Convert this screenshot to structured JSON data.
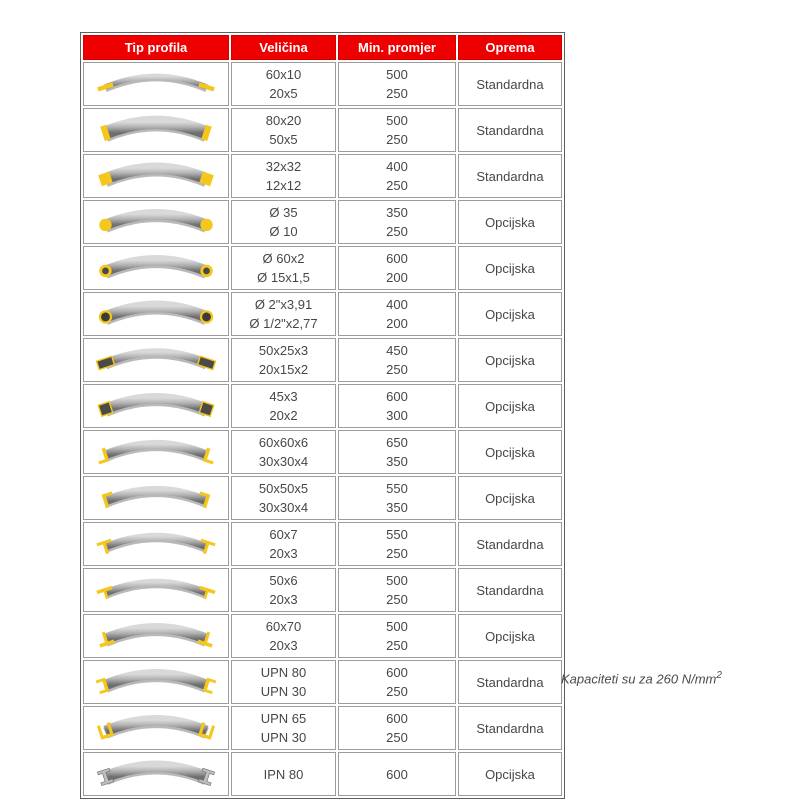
{
  "colors": {
    "header_bg": "#ee0000",
    "header_text": "#ffffff",
    "accent_yellow": "#f5c61b",
    "cell_text": "#474747",
    "steel_light": "#d9d9d9",
    "steel_mid": "#b2b2b2",
    "steel_dark": "#6e6e6e",
    "border_outer": "#5f5f5f",
    "border_cell": "#9c9c9c"
  },
  "table": {
    "columns": [
      "Tip profila",
      "Veličina",
      "Min. promjer",
      "Oprema"
    ],
    "rows": [
      {
        "icon": "flat-bar-icon",
        "sizes": [
          "60x10",
          "20x5"
        ],
        "min_diameters": [
          "500",
          "250"
        ],
        "equipment": "Standardna"
      },
      {
        "icon": "flat-bar-edge-icon",
        "sizes": [
          "80x20",
          "50x5"
        ],
        "min_diameters": [
          "500",
          "250"
        ],
        "equipment": "Standardna"
      },
      {
        "icon": "square-bar-icon",
        "sizes": [
          "32x32",
          "12x12"
        ],
        "min_diameters": [
          "400",
          "250"
        ],
        "equipment": "Standardna"
      },
      {
        "icon": "round-bar-icon",
        "sizes": [
          "Ø 35",
          "Ø 10"
        ],
        "min_diameters": [
          "350",
          "250"
        ],
        "equipment": "Opcijska"
      },
      {
        "icon": "round-tube-icon",
        "sizes": [
          "Ø 60x2",
          "Ø 15x1,5"
        ],
        "min_diameters": [
          "600",
          "200"
        ],
        "equipment": "Opcijska"
      },
      {
        "icon": "pipe-icon",
        "sizes": [
          "Ø 2\"x3,91",
          "Ø 1/2\"x2,77"
        ],
        "min_diameters": [
          "400",
          "200"
        ],
        "equipment": "Opcijska"
      },
      {
        "icon": "rect-tube-icon",
        "sizes": [
          "50x25x3",
          "20x15x2"
        ],
        "min_diameters": [
          "450",
          "250"
        ],
        "equipment": "Opcijska"
      },
      {
        "icon": "square-tube-icon",
        "sizes": [
          "45x3",
          "20x2"
        ],
        "min_diameters": [
          "600",
          "300"
        ],
        "equipment": "Opcijska"
      },
      {
        "icon": "angle-out-icon",
        "sizes": [
          "60x60x6",
          "30x30x4"
        ],
        "min_diameters": [
          "650",
          "350"
        ],
        "equipment": "Opcijska"
      },
      {
        "icon": "angle-in-icon",
        "sizes": [
          "50x50x5",
          "30x30x4"
        ],
        "min_diameters": [
          "550",
          "350"
        ],
        "equipment": "Opcijska"
      },
      {
        "icon": "tee-icon",
        "sizes": [
          "60x7",
          "20x3"
        ],
        "min_diameters": [
          "550",
          "250"
        ],
        "equipment": "Standardna"
      },
      {
        "icon": "tee-flat-icon",
        "sizes": [
          "50x6",
          "20x3"
        ],
        "min_diameters": [
          "500",
          "250"
        ],
        "equipment": "Standardna"
      },
      {
        "icon": "tee-up-icon",
        "sizes": [
          "60x70",
          "20x3"
        ],
        "min_diameters": [
          "500",
          "250"
        ],
        "equipment": "Opcijska"
      },
      {
        "icon": "upn-flange-icon",
        "sizes": [
          "UPN 80",
          "UPN 30"
        ],
        "min_diameters": [
          "600",
          "250"
        ],
        "equipment": "Standardna"
      },
      {
        "icon": "upn-up-icon",
        "sizes": [
          "UPN 65",
          "UPN 30"
        ],
        "min_diameters": [
          "600",
          "250"
        ],
        "equipment": "Standardna"
      },
      {
        "icon": "ipn-icon",
        "sizes": [
          "IPN 80"
        ],
        "min_diameters": [
          "600"
        ],
        "equipment": "Opcijska"
      }
    ]
  },
  "note": {
    "text": "Kapaciteti su za 260 N/mm",
    "superscript": "2"
  }
}
